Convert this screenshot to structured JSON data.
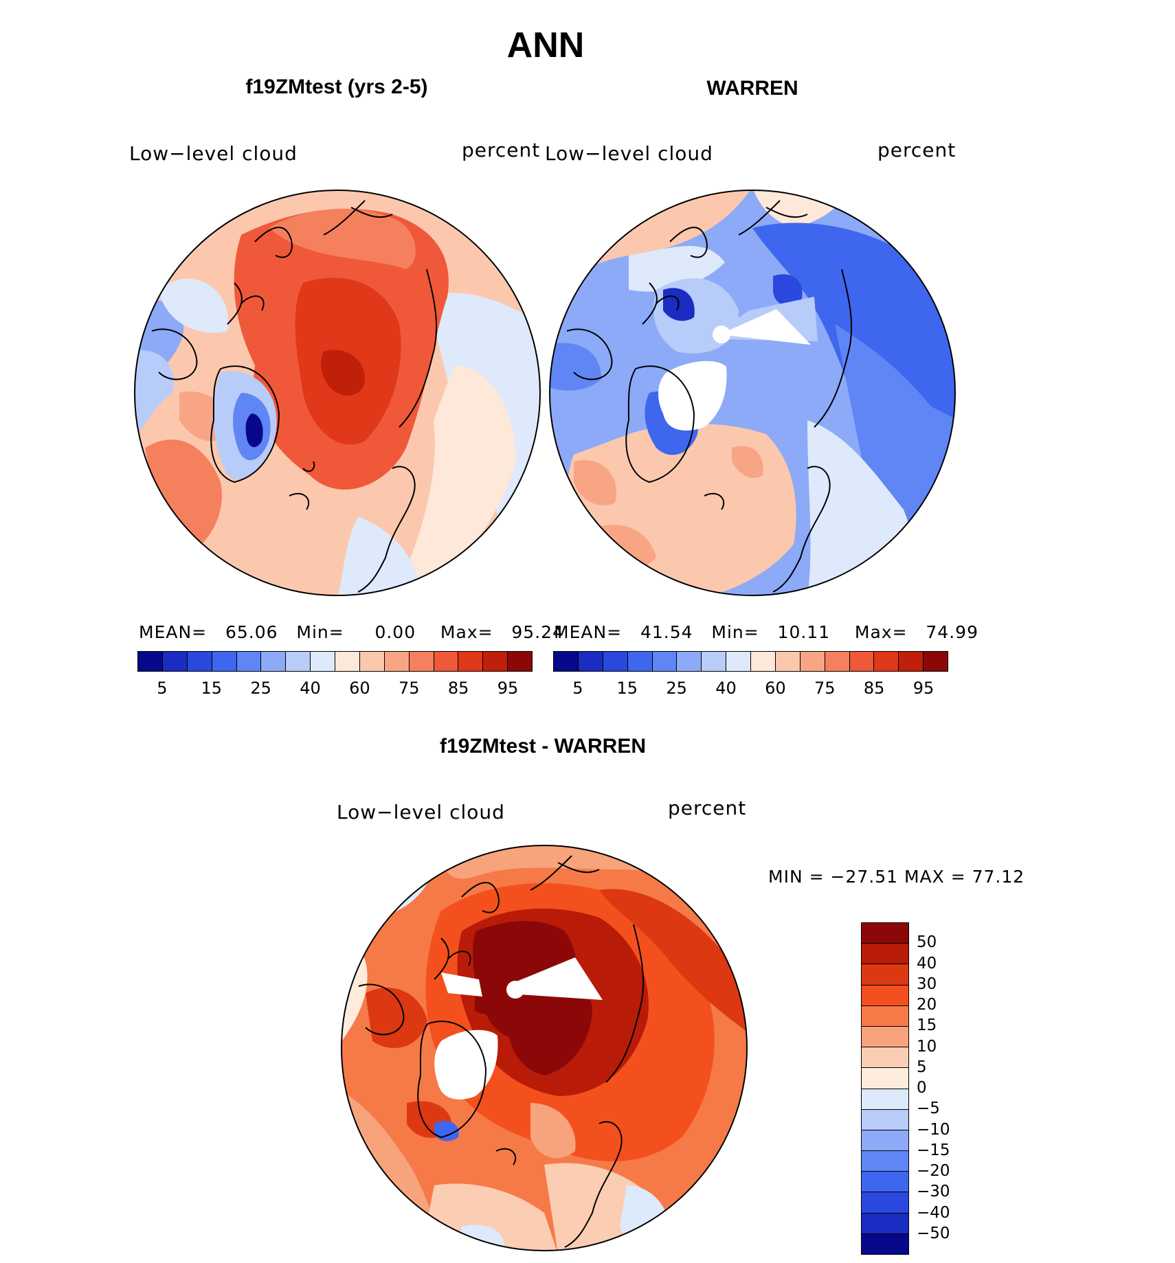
{
  "figure": {
    "title": "ANN"
  },
  "panels": [
    {
      "id": "model",
      "title": "f19ZMtest (yrs 2-5)",
      "variable": "Low−level cloud",
      "units": "percent",
      "stats": {
        "mean_label": "MEAN=",
        "mean": "65.06",
        "min_label": "Min=",
        "min": "0.00",
        "max_label": "Max=",
        "max": "95.24"
      }
    },
    {
      "id": "obs",
      "title": "WARREN",
      "variable": "Low−level cloud",
      "units": "percent",
      "stats": {
        "mean_label": "MEAN=",
        "mean": "41.54",
        "min_label": "Min=",
        "min": "10.11",
        "max_label": "Max=",
        "max": "74.99"
      }
    },
    {
      "id": "diff",
      "title": "f19ZMtest - WARREN",
      "variable": "Low−level cloud",
      "units": "percent",
      "minmax_text": "MIN = −27.51  MAX =    77.12"
    }
  ],
  "colorbar_abs": {
    "colors": [
      "#08088a",
      "#1a2cc2",
      "#2a48de",
      "#3f66ee",
      "#5f86f4",
      "#8caaf7",
      "#b7ccf8",
      "#deeafb",
      "#fde8d9",
      "#fbc8ae",
      "#f8a586",
      "#f5805e",
      "#f0583a",
      "#e03818",
      "#c0200a",
      "#8c0808"
    ],
    "tick_labels": [
      "5",
      "15",
      "25",
      "40",
      "60",
      "75",
      "85",
      "95"
    ]
  },
  "colorbar_diff": {
    "colors": [
      "#8c0808",
      "#b81c08",
      "#dc3812",
      "#f4501e",
      "#f57a48",
      "#f7a37c",
      "#fbcdb2",
      "#fdebdc",
      "#ddeafb",
      "#b7ccf8",
      "#8caaf7",
      "#5f86f4",
      "#3f66ee",
      "#2a48de",
      "#1a2cc2",
      "#08088a"
    ],
    "tick_labels": [
      "50",
      "40",
      "30",
      "20",
      "15",
      "10",
      "5",
      "0",
      "−5",
      "−10",
      "−15",
      "−20",
      "−30",
      "−40",
      "−50"
    ]
  },
  "colors": {
    "map_boundary": "#000000",
    "coastline": "#000000",
    "missing": "#ffffff"
  }
}
